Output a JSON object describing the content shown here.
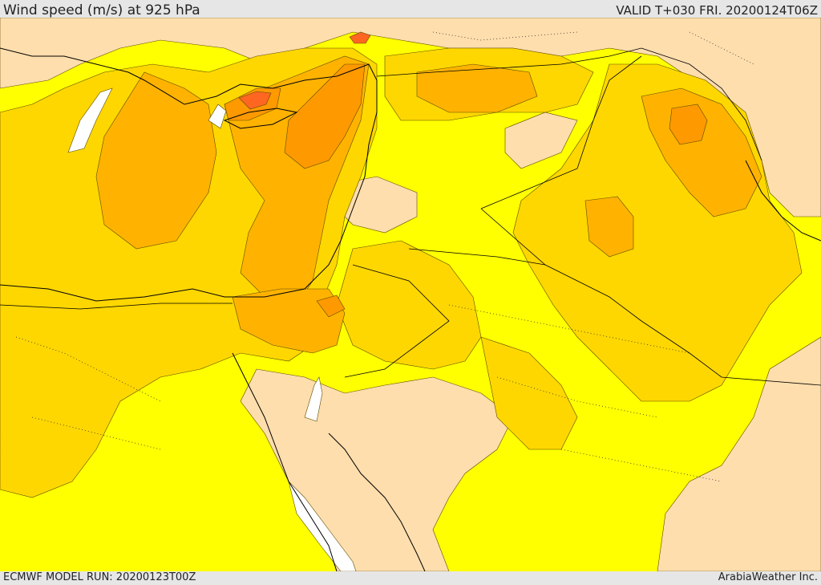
{
  "header": {
    "title": "Wind speed (m/s) at 925 hPa",
    "valid": "VALID T+030 FRI. 20200124T06Z"
  },
  "footer": {
    "model_run": "ECMWF MODEL RUN: 20200123T00Z",
    "credit": "ArabiaWeather Inc."
  },
  "colors": {
    "calm": "#ffffff",
    "light": "#ffdead",
    "moderate": "#ffff00",
    "fresh": "#ffd700",
    "strong": "#ffb300",
    "very_strong": "#ff9900",
    "gale": "#ff6622",
    "contour": "#5a4a00",
    "coast": "#000000",
    "border": "#000000"
  }
}
